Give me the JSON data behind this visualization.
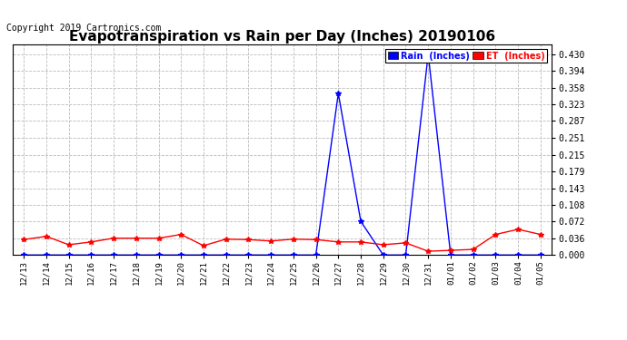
{
  "title": "Evapotranspiration vs Rain per Day (Inches) 20190106",
  "copyright": "Copyright 2019 Cartronics.com",
  "x_labels": [
    "12/13",
    "12/14",
    "12/15",
    "12/16",
    "12/17",
    "12/18",
    "12/19",
    "12/20",
    "12/21",
    "12/22",
    "12/23",
    "12/24",
    "12/25",
    "12/26",
    "12/27",
    "12/28",
    "12/29",
    "12/30",
    "12/31",
    "01/01",
    "01/02",
    "01/03",
    "01/04",
    "01/05"
  ],
  "rain_inches": [
    0.0,
    0.0,
    0.0,
    0.0,
    0.0,
    0.0,
    0.0,
    0.0,
    0.0,
    0.0,
    0.0,
    0.0,
    0.0,
    0.0,
    0.346,
    0.072,
    0.0,
    0.0,
    0.43,
    0.0,
    0.0,
    0.0,
    0.0,
    0.0
  ],
  "et_inches": [
    0.033,
    0.04,
    0.022,
    0.028,
    0.036,
    0.036,
    0.036,
    0.044,
    0.02,
    0.034,
    0.033,
    0.03,
    0.034,
    0.033,
    0.028,
    0.028,
    0.022,
    0.026,
    0.008,
    0.01,
    0.012,
    0.044,
    0.055,
    0.044
  ],
  "rain_color": "#0000ff",
  "et_color": "#ff0000",
  "background_color": "#ffffff",
  "grid_color": "#bbbbbb",
  "ylim": [
    0.0,
    0.4515
  ],
  "yticks": [
    0.0,
    0.036,
    0.072,
    0.108,
    0.143,
    0.179,
    0.215,
    0.251,
    0.287,
    0.323,
    0.358,
    0.394,
    0.43
  ],
  "title_fontsize": 11,
  "copyright_fontsize": 7,
  "legend_rain_label": "Rain  (Inches)",
  "legend_et_label": "ET  (Inches)",
  "legend_rain_bg": "#0000ff",
  "legend_et_bg": "#ff0000"
}
